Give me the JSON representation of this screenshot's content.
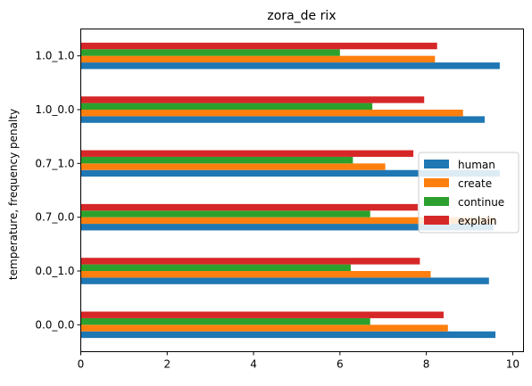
{
  "chart_data": {
    "type": "bar",
    "orientation": "horizontal",
    "title": "zora_de rix",
    "xlabel": "",
    "ylabel": "temperature, frequency penalty",
    "xlim": [
      0,
      10.25
    ],
    "xticks": [
      0,
      2,
      4,
      6,
      8,
      10
    ],
    "grid": false,
    "legend_position": "right",
    "categories": [
      "0.0_0.0",
      "0.0_1.0",
      "0.7_0.0",
      "0.7_1.0",
      "1.0_0.0",
      "1.0_1.0"
    ],
    "series": [
      {
        "name": "human",
        "color": "#1f77b4",
        "values": [
          9.6,
          9.45,
          9.55,
          9.7,
          9.35,
          9.7
        ]
      },
      {
        "name": "create",
        "color": "#ff7f0e",
        "values": [
          8.5,
          8.1,
          9.6,
          7.05,
          8.85,
          8.2
        ]
      },
      {
        "name": "continue",
        "color": "#2ca02c",
        "values": [
          6.7,
          6.25,
          6.7,
          6.3,
          6.75,
          6.0
        ]
      },
      {
        "name": "explain",
        "color": "#d62728",
        "values": [
          8.4,
          7.85,
          7.8,
          7.7,
          7.95,
          8.25
        ]
      }
    ]
  }
}
